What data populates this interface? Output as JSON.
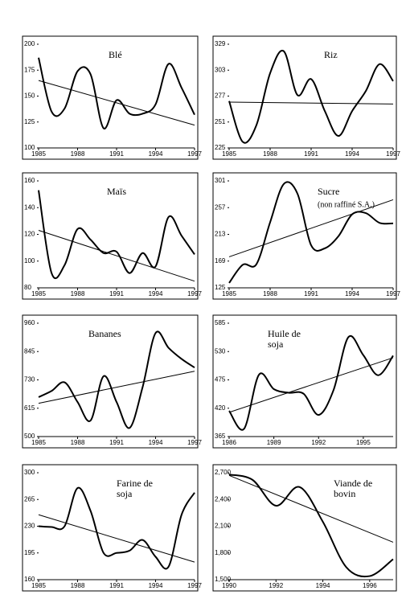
{
  "chart_data": [
    {
      "type": "line",
      "title": [
        "Blé"
      ],
      "color": "#000000",
      "x": [
        1985,
        1986,
        1987,
        1988,
        1989,
        1990,
        1991,
        1992,
        1993,
        1994,
        1995,
        1996,
        1997
      ],
      "values": [
        187,
        135,
        138,
        174,
        171,
        119,
        146,
        133,
        133,
        142,
        181,
        158,
        132
      ],
      "trend": [
        165,
        122
      ],
      "xlim": [
        1985,
        1997
      ],
      "xticks": [
        1985,
        1988,
        1991,
        1994,
        1997
      ],
      "ylim": [
        100,
        200
      ],
      "yticks": [
        100,
        125,
        150,
        175,
        200
      ]
    },
    {
      "type": "line",
      "title": [
        "Riz"
      ],
      "color": "#000000",
      "x": [
        1985,
        1986,
        1987,
        1988,
        1989,
        1990,
        1991,
        1992,
        1993,
        1994,
        1995,
        1996,
        1997
      ],
      "values": [
        272,
        231,
        248,
        300,
        322,
        278,
        294,
        262,
        237,
        262,
        282,
        309,
        292
      ],
      "trend": [
        271,
        269
      ],
      "xlim": [
        1985,
        1997
      ],
      "xticks": [
        1985,
        1988,
        1991,
        1994,
        1997
      ],
      "ylim": [
        225,
        329
      ],
      "yticks": [
        225,
        251,
        277,
        303,
        329
      ]
    },
    {
      "type": "line",
      "title": [
        "Maïs"
      ],
      "color": "#000000",
      "x": [
        1985,
        1986,
        1987,
        1988,
        1989,
        1990,
        1991,
        1992,
        1993,
        1994,
        1995,
        1996,
        1997
      ],
      "values": [
        153,
        91,
        97,
        124,
        116,
        106,
        107,
        91,
        106,
        96,
        133,
        119,
        105
      ],
      "trend": [
        123,
        85
      ],
      "xlim": [
        1985,
        1997
      ],
      "xticks": [
        1985,
        1988,
        1991,
        1994,
        1997
      ],
      "ylim": [
        80,
        160
      ],
      "yticks": [
        80,
        100,
        120,
        140,
        160
      ]
    },
    {
      "type": "line",
      "title": [
        "Sucre"
      ],
      "subtitle": "(non raffiné S.A.)",
      "color": "#000000",
      "x": [
        1985,
        1986,
        1987,
        1988,
        1989,
        1990,
        1991,
        1992,
        1993,
        1994,
        1995,
        1996,
        1997
      ],
      "values": [
        133,
        163,
        164,
        233,
        296,
        280,
        195,
        190,
        210,
        246,
        248,
        232,
        231
      ],
      "trend": [
        176,
        270
      ],
      "xlim": [
        1985,
        1997
      ],
      "xticks": [
        1985,
        1988,
        1991,
        1994,
        1997
      ],
      "ylim": [
        125,
        301
      ],
      "yticks": [
        125,
        169,
        213,
        257,
        301
      ]
    },
    {
      "type": "line",
      "title": [
        "Bananes"
      ],
      "color": "#000000",
      "x": [
        1985,
        1986,
        1987,
        1988,
        1989,
        1990,
        1991,
        1992,
        1993,
        1994,
        1995,
        1996,
        1997
      ],
      "values": [
        660,
        685,
        720,
        640,
        565,
        745,
        640,
        535,
        700,
        920,
        860,
        815,
        780
      ],
      "trend": [
        635,
        765
      ],
      "xlim": [
        1985,
        1997
      ],
      "xticks": [
        1985,
        1988,
        1991,
        1994,
        1997
      ],
      "ylim": [
        500,
        960
      ],
      "yticks": [
        500,
        615,
        730,
        845,
        960
      ]
    },
    {
      "type": "line",
      "title": [
        "Huile de",
        "soja"
      ],
      "color": "#000000",
      "x": [
        1986,
        1987,
        1988,
        1989,
        1990,
        1991,
        1992,
        1993,
        1994,
        1995,
        1996,
        1997
      ],
      "values": [
        415,
        380,
        485,
        457,
        450,
        448,
        407,
        455,
        558,
        523,
        484,
        522
      ],
      "trend": [
        412,
        518
      ],
      "xlim": [
        1986,
        1997
      ],
      "xticks": [
        1986,
        1989,
        1992,
        1995
      ],
      "ylim": [
        365,
        585
      ],
      "yticks": [
        365,
        420,
        475,
        530,
        585
      ]
    },
    {
      "type": "line",
      "title": [
        "Farine de",
        "soja"
      ],
      "color": "#000000",
      "x": [
        1985,
        1986,
        1987,
        1988,
        1989,
        1990,
        1991,
        1992,
        1993,
        1994,
        1995,
        1996,
        1997
      ],
      "values": [
        230,
        229,
        230,
        280,
        250,
        195,
        195,
        198,
        212,
        190,
        177,
        245,
        274
      ],
      "trend": [
        245,
        183
      ],
      "xlim": [
        1985,
        1997
      ],
      "xticks": [
        1985,
        1988,
        1991,
        1994,
        1997
      ],
      "ylim": [
        160,
        300
      ],
      "yticks": [
        160,
        195,
        230,
        265,
        300
      ]
    },
    {
      "type": "line",
      "title": [
        "Viande de",
        "bovin"
      ],
      "color": "#000000",
      "x": [
        1990,
        1991,
        1992,
        1993,
        1994,
        1995,
        1996,
        1997
      ],
      "values": [
        2680,
        2620,
        2330,
        2540,
        2150,
        1640,
        1540,
        1730
      ],
      "trend": [
        2670,
        1920
      ],
      "xlim": [
        1990,
        1997
      ],
      "xticks": [
        1990,
        1992,
        1994,
        1996
      ],
      "ylim": [
        1500,
        2700
      ],
      "yticks": [
        {
          "value": 1500,
          "label": "1,500"
        },
        {
          "value": 1800,
          "label": "1,800"
        },
        {
          "value": 2100,
          "label": "2,100"
        },
        {
          "value": 2400,
          "label": "2,400"
        },
        {
          "value": 2700,
          "label": "2,700"
        }
      ]
    }
  ]
}
